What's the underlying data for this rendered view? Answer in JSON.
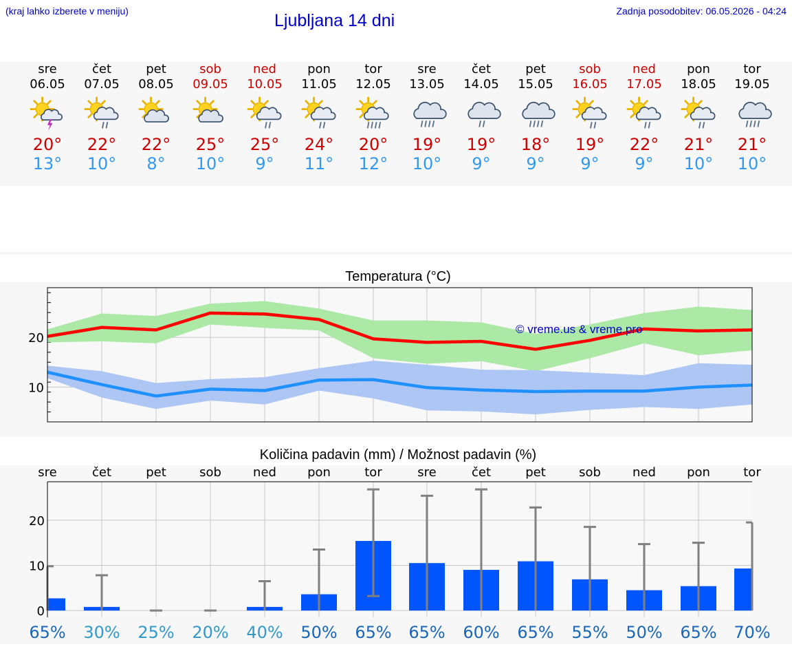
{
  "header": {
    "hint": "(kraj lahko izberete v meniju)",
    "title": "Ljubljana 14 dni",
    "updated": "Zadnja posodobitev: 06.05.2026 - 04:24"
  },
  "days": [
    {
      "name": "sre",
      "date": "06.05",
      "weekend": false,
      "icon": "sun-cloud-lightning-icon",
      "tmax": "20°",
      "tmin": "13°"
    },
    {
      "name": "čet",
      "date": "07.05",
      "weekend": false,
      "icon": "sun-cloud-rain-icon",
      "tmax": "22°",
      "tmin": "10°"
    },
    {
      "name": "pet",
      "date": "08.05",
      "weekend": false,
      "icon": "sun-cloud-icon",
      "tmax": "22°",
      "tmin": "8°"
    },
    {
      "name": "sob",
      "date": "09.05",
      "weekend": true,
      "icon": "sun-cloud-icon",
      "tmax": "25°",
      "tmin": "10°"
    },
    {
      "name": "ned",
      "date": "10.05",
      "weekend": true,
      "icon": "sun-cloud-rain-icon",
      "tmax": "25°",
      "tmin": "9°"
    },
    {
      "name": "pon",
      "date": "11.05",
      "weekend": false,
      "icon": "sun-cloud-rain-icon",
      "tmax": "24°",
      "tmin": "11°"
    },
    {
      "name": "tor",
      "date": "12.05",
      "weekend": false,
      "icon": "sun-cloud-heavy-rain-icon",
      "tmax": "20°",
      "tmin": "12°"
    },
    {
      "name": "sre",
      "date": "13.05",
      "weekend": false,
      "icon": "cloud-heavy-rain-icon",
      "tmax": "19°",
      "tmin": "10°"
    },
    {
      "name": "čet",
      "date": "14.05",
      "weekend": false,
      "icon": "cloud-rain-icon",
      "tmax": "19°",
      "tmin": "9°"
    },
    {
      "name": "pet",
      "date": "15.05",
      "weekend": false,
      "icon": "cloud-heavy-rain-icon",
      "tmax": "18°",
      "tmin": "9°"
    },
    {
      "name": "sob",
      "date": "16.05",
      "weekend": true,
      "icon": "sun-cloud-rain-icon",
      "tmax": "19°",
      "tmin": "9°"
    },
    {
      "name": "ned",
      "date": "17.05",
      "weekend": true,
      "icon": "sun-cloud-rain-icon",
      "tmax": "22°",
      "tmin": "9°"
    },
    {
      "name": "pon",
      "date": "18.05",
      "weekend": false,
      "icon": "sun-cloud-rain-icon",
      "tmax": "21°",
      "tmin": "10°"
    },
    {
      "name": "tor",
      "date": "19.05",
      "weekend": false,
      "icon": "cloud-heavy-rain-icon",
      "tmax": "21°",
      "tmin": "10°"
    }
  ],
  "colors": {
    "max_line": "#ff0000",
    "max_band": "#ace8a6",
    "min_line": "#1e90ff",
    "min_band": "#aec6f4",
    "bar": "#0055ff",
    "whisker": "#808080",
    "weekend_text": "#cc0000",
    "min_text": "#3399ee",
    "watermark": "#0000cc"
  },
  "chart_data": [
    {
      "type": "line",
      "title": "Temperatura (°C)",
      "watermark": "© vreme.us & vreme.pro",
      "x": [
        "06.05",
        "07.05",
        "08.05",
        "09.05",
        "10.05",
        "11.05",
        "12.05",
        "13.05",
        "14.05",
        "15.05",
        "16.05",
        "17.05",
        "18.05",
        "19.05"
      ],
      "ylim": [
        3,
        30
      ],
      "yticks": [
        10,
        20
      ],
      "grid": true,
      "series": [
        {
          "values": [
            20.2,
            22.0,
            21.5,
            24.9,
            24.7,
            23.6,
            19.7,
            19.0,
            19.2,
            17.6,
            19.4,
            21.7,
            21.3,
            21.5
          ],
          "band_upper": [
            21.6,
            24.8,
            24.3,
            26.8,
            27.3,
            25.8,
            23.4,
            23.4,
            23.0,
            20.7,
            22.6,
            24.9,
            26.2,
            25.5
          ],
          "band_lower": [
            19.0,
            19.2,
            18.8,
            22.6,
            21.9,
            21.4,
            15.8,
            14.7,
            15.2,
            13.2,
            15.8,
            18.8,
            16.4,
            17.4
          ]
        },
        {
          "values": [
            13.0,
            10.5,
            8.2,
            9.6,
            9.3,
            11.4,
            11.5,
            9.9,
            9.4,
            9.1,
            9.2,
            9.2,
            10.0,
            10.4
          ],
          "band_upper": [
            14.3,
            13.2,
            10.8,
            11.6,
            12.0,
            13.8,
            15.3,
            14.5,
            13.5,
            13.4,
            12.9,
            12.4,
            14.8,
            14.5
          ],
          "band_lower": [
            11.8,
            7.9,
            5.6,
            7.3,
            6.5,
            9.3,
            7.7,
            5.3,
            5.1,
            4.5,
            5.4,
            6.0,
            5.6,
            6.5
          ]
        }
      ]
    },
    {
      "type": "bar",
      "title": "Količina padavin (mm) / Možnost padavin (%)",
      "categories": [
        "sre",
        "čet",
        "pet",
        "sob",
        "ned",
        "pon",
        "tor",
        "sre",
        "čet",
        "pet",
        "sob",
        "ned",
        "pon",
        "tor"
      ],
      "ylim": [
        -1.5,
        28.5
      ],
      "yticks": [
        0,
        10,
        20
      ],
      "grid": true,
      "values": [
        2.7,
        0.8,
        0.0,
        0.0,
        0.8,
        3.6,
        15.4,
        10.5,
        9.0,
        10.9,
        6.9,
        4.5,
        5.4,
        9.3
      ],
      "whisker_high": [
        9.8,
        7.8,
        0.0,
        0.0,
        6.5,
        13.5,
        26.8,
        25.4,
        26.8,
        22.8,
        18.5,
        14.7,
        15.0,
        19.5
      ],
      "whisker_low": [
        0,
        0,
        0,
        0,
        0,
        0,
        3.2,
        0,
        0,
        0,
        0,
        0,
        0,
        0
      ],
      "chance": [
        "65%",
        "30%",
        "25%",
        "20%",
        "40%",
        "50%",
        "65%",
        "65%",
        "60%",
        "65%",
        "55%",
        "50%",
        "65%",
        "70%"
      ],
      "chance_colors": [
        "#1a66b8",
        "#3399cc",
        "#3399cc",
        "#3399cc",
        "#3399cc",
        "#1a66b8",
        "#1a66b8",
        "#1a66b8",
        "#1a66b8",
        "#1a66b8",
        "#1a66b8",
        "#1a66b8",
        "#1a66b8",
        "#1a66b8"
      ]
    }
  ]
}
